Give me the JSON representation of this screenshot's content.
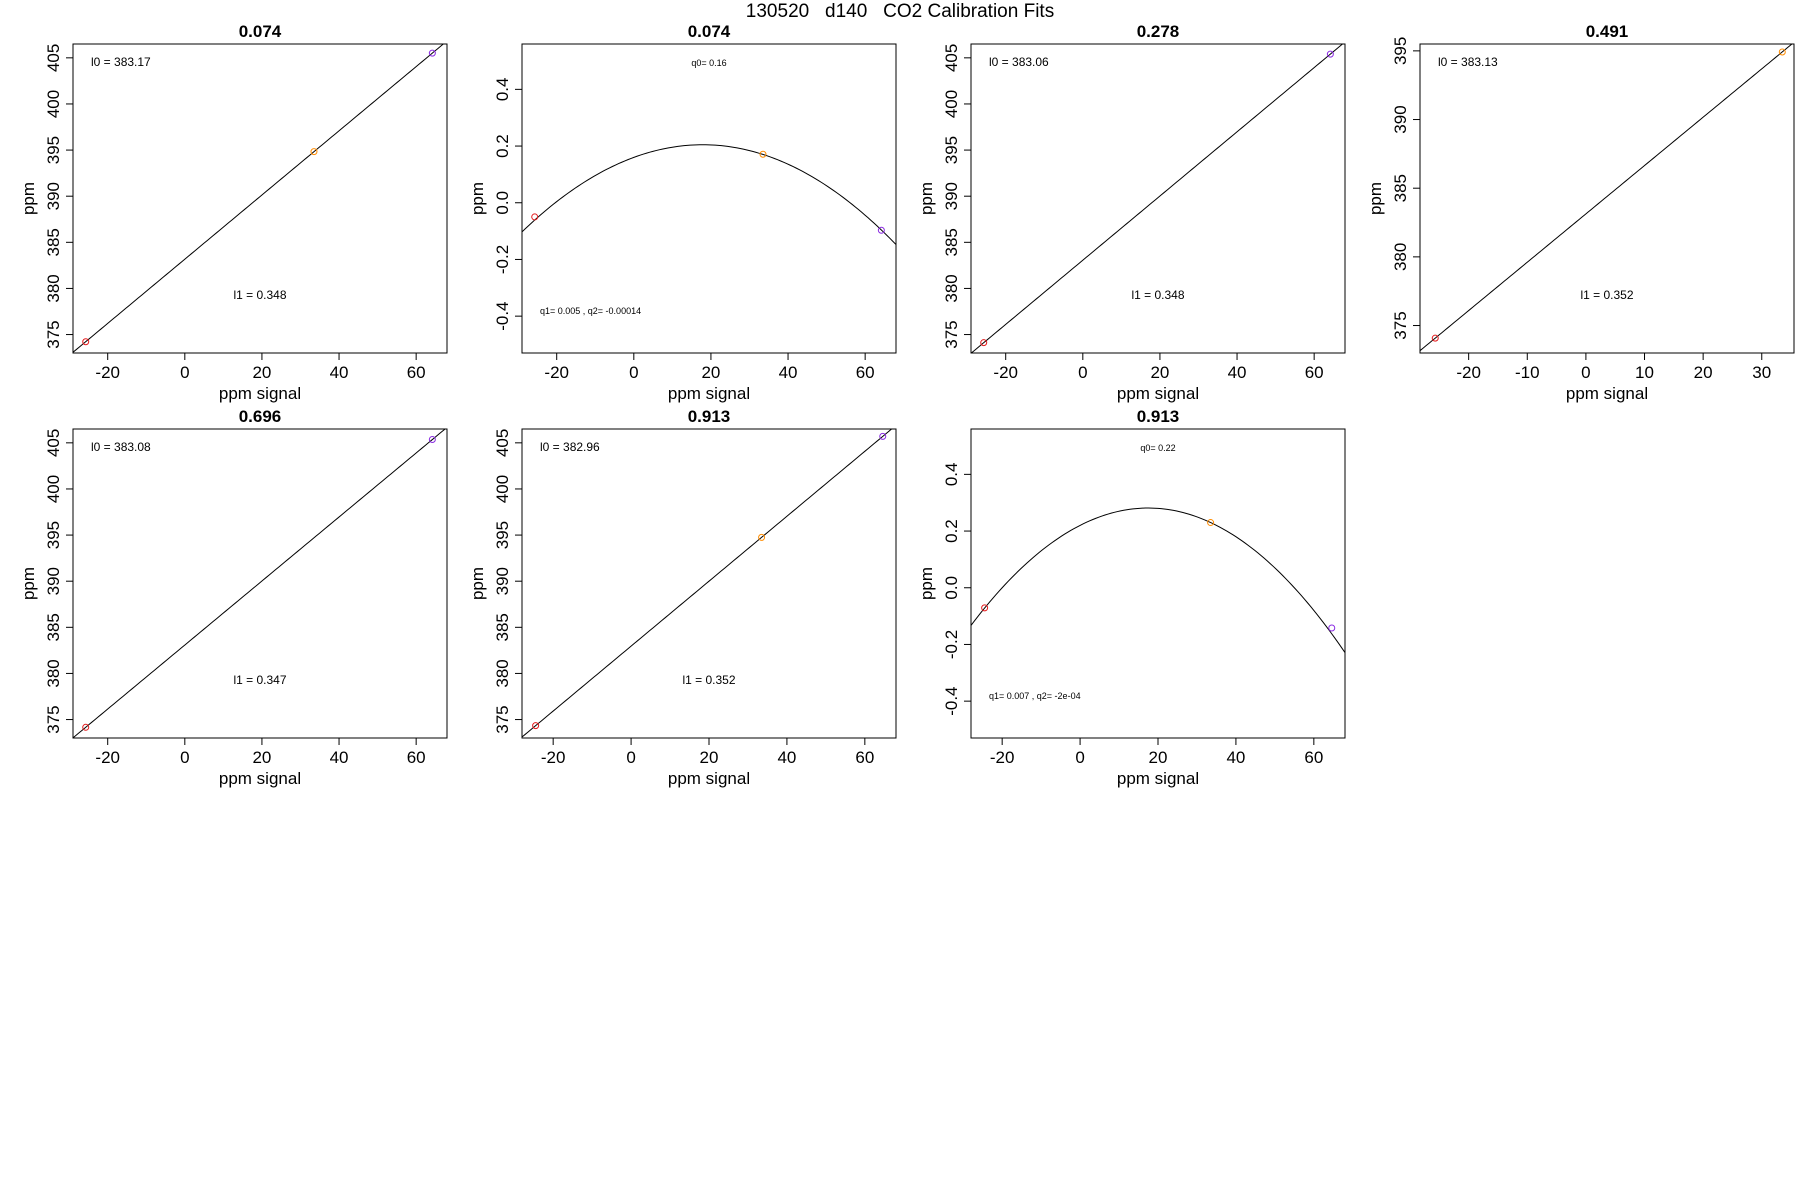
{
  "figure": {
    "title": "130520   d140   CO2 Calibration Fits"
  },
  "chart_data": [
    {
      "type": "line",
      "fit": "linear",
      "title": "0.074",
      "xlabel": "ppm signal",
      "ylabel": "ppm",
      "xlim": [
        -29,
        68
      ],
      "ylim": [
        373,
        406.5
      ],
      "xticks": [
        -20,
        0,
        20,
        40,
        60
      ],
      "yticks": [
        375,
        380,
        385,
        390,
        395,
        400,
        405
      ],
      "line": {
        "intercept": 383.17,
        "slope": 0.348
      },
      "points": [
        {
          "x": -25.7,
          "y": 374.22,
          "color": "#e31a1c"
        },
        {
          "x": 33.5,
          "y": 394.83,
          "color": "#ff8c00"
        },
        {
          "x": 64.2,
          "y": 405.51,
          "color": "#8a2be2"
        }
      ],
      "annotations": {
        "top": "l0 =  383.17",
        "bottom": "l1 =  0.348"
      }
    },
    {
      "type": "line",
      "fit": "quadratic",
      "title": "0.074",
      "xlabel": "ppm signal",
      "ylabel": "ppm",
      "xlim": [
        -29,
        68
      ],
      "ylim": [
        -0.53,
        0.56
      ],
      "xticks": [
        -20,
        0,
        20,
        40,
        60
      ],
      "yticks": [
        -0.4,
        -0.2,
        0.0,
        0.2,
        0.4
      ],
      "curve": {
        "q0": 0.16,
        "q1": 0.005,
        "q2": -0.00014
      },
      "points": [
        {
          "x": -25.7,
          "y": -0.05,
          "color": "#e31a1c"
        },
        {
          "x": 33.5,
          "y": 0.171,
          "color": "#ff8c00"
        },
        {
          "x": 64.2,
          "y": -0.097,
          "color": "#8a2be2"
        }
      ],
      "annotations": {
        "top": "q0= 0.16",
        "bottom": "q1= 0.005 , q2= -0.00014"
      }
    },
    {
      "type": "line",
      "fit": "linear",
      "title": "0.278",
      "xlabel": "ppm signal",
      "ylabel": "ppm",
      "xlim": [
        -29,
        68
      ],
      "ylim": [
        373,
        406.5
      ],
      "xticks": [
        -20,
        0,
        20,
        40,
        60
      ],
      "yticks": [
        375,
        380,
        385,
        390,
        395,
        400,
        405
      ],
      "line": {
        "intercept": 383.06,
        "slope": 0.348
      },
      "points": [
        {
          "x": -25.7,
          "y": 374.12,
          "color": "#e31a1c"
        },
        {
          "x": 64.2,
          "y": 405.4,
          "color": "#8a2be2"
        }
      ],
      "annotations": {
        "top": "l0 =  383.06",
        "bottom": "l1 =  0.348"
      }
    },
    {
      "type": "line",
      "fit": "linear",
      "title": "0.491",
      "xlabel": "ppm signal",
      "ylabel": "ppm",
      "xlim": [
        -28.3,
        35.5
      ],
      "ylim": [
        373,
        395.5
      ],
      "xticks": [
        -20,
        -10,
        0,
        10,
        20,
        30
      ],
      "yticks": [
        375,
        380,
        385,
        390,
        395
      ],
      "line": {
        "intercept": 383.13,
        "slope": 0.352
      },
      "points": [
        {
          "x": -25.7,
          "y": 374.08,
          "color": "#e31a1c"
        },
        {
          "x": 33.5,
          "y": 394.92,
          "color": "#ff8c00"
        }
      ],
      "annotations": {
        "top": "l0 =  383.13",
        "bottom": "l1 =  0.352"
      }
    },
    {
      "type": "line",
      "fit": "linear",
      "title": "0.696",
      "xlabel": "ppm signal",
      "ylabel": "ppm",
      "xlim": [
        -29,
        68
      ],
      "ylim": [
        373,
        406.5
      ],
      "xticks": [
        -20,
        0,
        20,
        40,
        60
      ],
      "yticks": [
        375,
        380,
        385,
        390,
        395,
        400,
        405
      ],
      "line": {
        "intercept": 383.08,
        "slope": 0.347
      },
      "points": [
        {
          "x": -25.7,
          "y": 374.16,
          "color": "#e31a1c"
        },
        {
          "x": 64.2,
          "y": 405.36,
          "color": "#8a2be2"
        }
      ],
      "annotations": {
        "top": "l0 =  383.08",
        "bottom": "l1 =  0.347"
      }
    },
    {
      "type": "line",
      "fit": "linear",
      "title": "0.913",
      "xlabel": "ppm signal",
      "ylabel": "ppm",
      "xlim": [
        -28,
        68
      ],
      "ylim": [
        373,
        406.5
      ],
      "xticks": [
        -20,
        0,
        20,
        40,
        60
      ],
      "yticks": [
        375,
        380,
        385,
        390,
        395,
        400,
        405
      ],
      "line": {
        "intercept": 382.96,
        "slope": 0.352
      },
      "points": [
        {
          "x": -24.5,
          "y": 374.34,
          "color": "#e31a1c"
        },
        {
          "x": 33.5,
          "y": 394.75,
          "color": "#ff8c00"
        },
        {
          "x": 64.6,
          "y": 405.7,
          "color": "#8a2be2"
        }
      ],
      "annotations": {
        "top": "l0 =  382.96",
        "bottom": "l1 =  0.352"
      }
    },
    {
      "type": "line",
      "fit": "quadratic",
      "title": "0.913",
      "xlabel": "ppm signal",
      "ylabel": "ppm",
      "xlim": [
        -28,
        68
      ],
      "ylim": [
        -0.53,
        0.56
      ],
      "xticks": [
        -20,
        0,
        20,
        40,
        60
      ],
      "yticks": [
        -0.4,
        -0.2,
        0.0,
        0.2,
        0.4
      ],
      "curve": {
        "q0": 0.22,
        "q1": 0.007,
        "q2": -0.0002
      },
      "points": [
        {
          "x": -24.5,
          "y": -0.071,
          "color": "#e31a1c"
        },
        {
          "x": 33.5,
          "y": 0.23,
          "color": "#ff8c00"
        },
        {
          "x": 64.6,
          "y": -0.142,
          "color": "#8a2be2"
        }
      ],
      "annotations": {
        "top": "q0= 0.22",
        "bottom": "q1= 0.007 , q2= -2e-04"
      }
    }
  ]
}
